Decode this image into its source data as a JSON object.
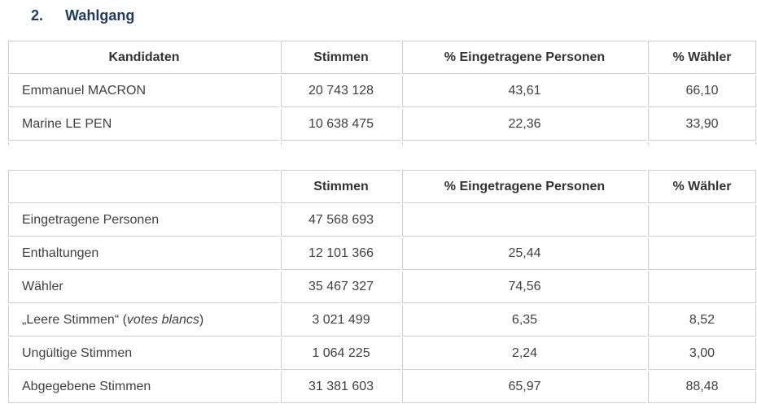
{
  "colors": {
    "heading": "#1f3a5f",
    "border": "#cccccc",
    "text": "#3f3f3f",
    "header-text": "#333333",
    "background": "#ffffff"
  },
  "heading": {
    "number": "2.",
    "title": "Wahlgang"
  },
  "tables": [
    {
      "name": "candidates",
      "headers": [
        "Kandidaten",
        "Stimmen",
        "% Eingetragene Personen",
        "% Wähler"
      ],
      "rows": [
        {
          "label": [
            {
              "t": "Emmanuel MACRON"
            }
          ],
          "values": [
            "20 743 128",
            "43,61",
            "66,10"
          ]
        },
        {
          "label": [
            {
              "t": "Marine LE PEN"
            }
          ],
          "values": [
            "10 638 475",
            "22,36",
            "33,90"
          ]
        }
      ]
    },
    {
      "name": "totals",
      "headers": [
        "",
        "Stimmen",
        "% Eingetragene Personen",
        "% Wähler"
      ],
      "rows": [
        {
          "label": [
            {
              "t": "Eingetragene Personen"
            }
          ],
          "values": [
            "47 568 693",
            "",
            ""
          ]
        },
        {
          "label": [
            {
              "t": "Enthaltungen"
            }
          ],
          "values": [
            "12 101 366",
            "25,44",
            ""
          ]
        },
        {
          "label": [
            {
              "t": "Wähler"
            }
          ],
          "values": [
            "35 467 327",
            "74,56",
            ""
          ]
        },
        {
          "label": [
            {
              "t": "„Leere Stimmen“ ("
            },
            {
              "t": "votes blancs",
              "i": true
            },
            {
              "t": ")"
            }
          ],
          "values": [
            "3 021 499",
            "6,35",
            "8,52"
          ]
        },
        {
          "label": [
            {
              "t": "Ungültige Stimmen"
            }
          ],
          "values": [
            "1 064 225",
            "2,24",
            "3,00"
          ]
        },
        {
          "label": [
            {
              "t": "Abgegebene Stimmen"
            }
          ],
          "values": [
            "31 381 603",
            "65,97",
            "88,48"
          ]
        }
      ]
    }
  ]
}
